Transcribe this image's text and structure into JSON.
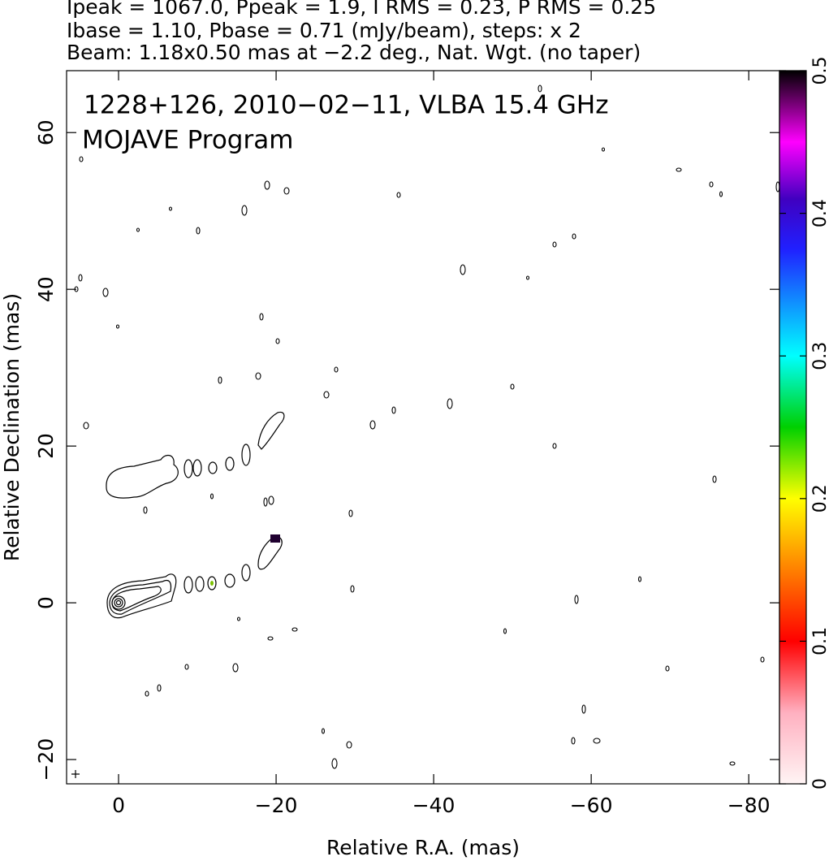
{
  "header": {
    "lines": [
      "Ipeak = 1067.0, Ppeak = 1.9, I RMS = 0.23, P RMS = 0.25",
      "Ibase = 1.10, Pbase = 0.71 (mJy/beam), steps: x 2",
      "Beam: 1.18x0.50 mas at −2.2 deg., Nat. Wgt. (no taper)"
    ]
  },
  "chart_data": {
    "type": "contour",
    "title": "1228+126, 2010−02−11, VLBA 15.4 GHz",
    "subtitle": "MOJAVE Program",
    "xlabel": "Relative R.A. (mas)",
    "ylabel": "Relative Declination (mas)",
    "xlim": [
      6.6,
      -83.9
    ],
    "ylim": [
      -23.1,
      67.9
    ],
    "xticks": [
      0,
      {
        "value": -20,
        "label": "−20"
      },
      {
        "value": -40,
        "label": "−40"
      },
      {
        "value": -60,
        "label": "−60"
      },
      {
        "value": -80,
        "label": "−80"
      }
    ],
    "yticks": [
      {
        "value": -20,
        "label": "−20"
      },
      0,
      20,
      40,
      60
    ],
    "colorbar": {
      "lim": [
        0,
        0.5
      ],
      "ticks": [
        0,
        0.1,
        0.2,
        0.3,
        0.4,
        0.5
      ]
    }
  }
}
